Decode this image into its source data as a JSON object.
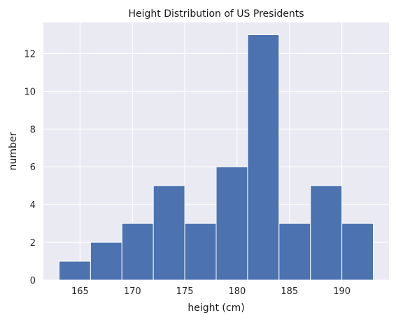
{
  "chart_data": {
    "type": "bar",
    "title": "Height Distribution of US Presidents",
    "xlabel": "height (cm)",
    "ylabel": "number",
    "bins": [
      {
        "start": 163.0,
        "end": 166.0,
        "count": 1
      },
      {
        "start": 166.0,
        "end": 169.0,
        "count": 2
      },
      {
        "start": 169.0,
        "end": 172.0,
        "count": 3
      },
      {
        "start": 172.0,
        "end": 175.0,
        "count": 5
      },
      {
        "start": 175.0,
        "end": 178.0,
        "count": 3
      },
      {
        "start": 178.0,
        "end": 181.0,
        "count": 6
      },
      {
        "start": 181.0,
        "end": 184.0,
        "count": 13
      },
      {
        "start": 184.0,
        "end": 187.0,
        "count": 3
      },
      {
        "start": 187.0,
        "end": 190.0,
        "count": 5
      },
      {
        "start": 190.0,
        "end": 193.0,
        "count": 3
      }
    ],
    "xlim": [
      161.5,
      194.5
    ],
    "ylim": [
      0,
      13.65
    ],
    "x_ticks": [
      165,
      170,
      175,
      180,
      185,
      190
    ],
    "y_ticks": [
      0,
      2,
      4,
      6,
      8,
      10,
      12
    ],
    "grid": true,
    "colors": {
      "bar": "#4c72b0",
      "background": "#eaeaf2",
      "grid": "#ffffff"
    }
  }
}
